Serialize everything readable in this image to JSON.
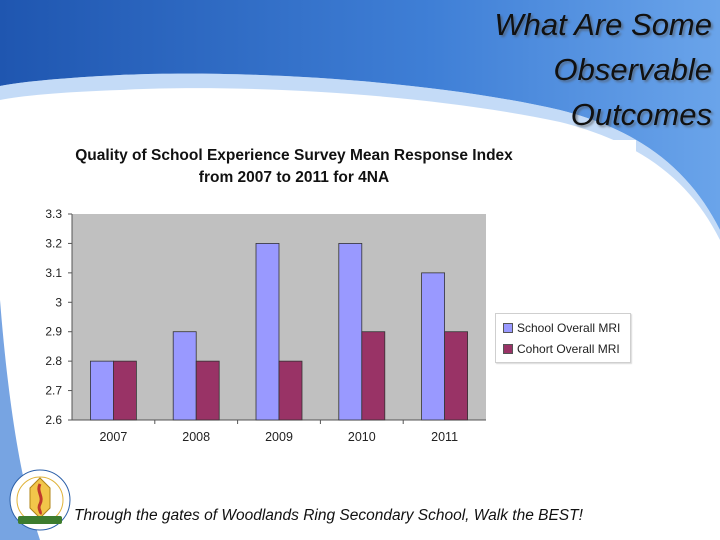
{
  "slide": {
    "title_lines": [
      "What Are Some",
      "Observable",
      "Outcomes"
    ],
    "motto": "Through the gates of Woodlands Ring Secondary School, Walk the BEST!",
    "colors": {
      "accent_blue": "#2d6bc4",
      "background": "#ffffff"
    }
  },
  "logo": {
    "icon": "school-crest-icon"
  },
  "chart_data": {
    "type": "bar",
    "title_lines": [
      "Quality of School Experience Survey Mean Response Index",
      "from 2007 to 2011 for 4NA"
    ],
    "categories": [
      "2007",
      "2008",
      "2009",
      "2010",
      "2011"
    ],
    "series": [
      {
        "name": "School Overall MRI",
        "values": [
          2.8,
          2.9,
          3.2,
          3.2,
          3.1
        ],
        "color": "#9999ff"
      },
      {
        "name": "Cohort Overall MRI",
        "values": [
          2.8,
          2.8,
          2.8,
          2.9,
          2.9
        ],
        "color": "#993366"
      }
    ],
    "ylim": [
      2.6,
      3.3
    ],
    "yticks": [
      "2.6",
      "2.7",
      "2.8",
      "2.9",
      "3",
      "3.1",
      "3.2",
      "3.3"
    ],
    "grid": false,
    "plot_background": "#c0c0c0",
    "legend_position": "right"
  }
}
